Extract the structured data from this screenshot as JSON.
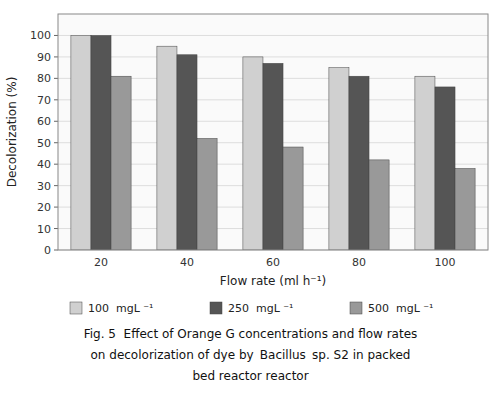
{
  "chart_data": {
    "type": "bar",
    "x_label": "Flow rate (ml h⁻¹)",
    "y_label": "Decolorization (%)",
    "categories": [
      "20",
      "40",
      "60",
      "80",
      "100"
    ],
    "series": [
      {
        "name": "100  mgL ⁻¹",
        "color": "#d0d0d0",
        "values": [
          100,
          95,
          90,
          85,
          81
        ]
      },
      {
        "name": "250  mgL ⁻¹",
        "color": "#555555",
        "values": [
          100,
          91,
          87,
          81,
          76
        ]
      },
      {
        "name": "500  mgL ⁻¹",
        "color": "#999999",
        "values": [
          81,
          52,
          48,
          42,
          38
        ]
      }
    ],
    "ylim": [
      0,
      110
    ],
    "yticks": [
      0,
      10,
      20,
      30,
      40,
      50,
      60,
      70,
      80,
      90,
      100
    ],
    "grid": true,
    "annotations": [
      "Fig. 5  Effect of Orange G concentrations and flow rates",
      "on decolorization of dye by  Bacillus  sp. S2 in packed",
      "bed reactor reactor"
    ]
  }
}
